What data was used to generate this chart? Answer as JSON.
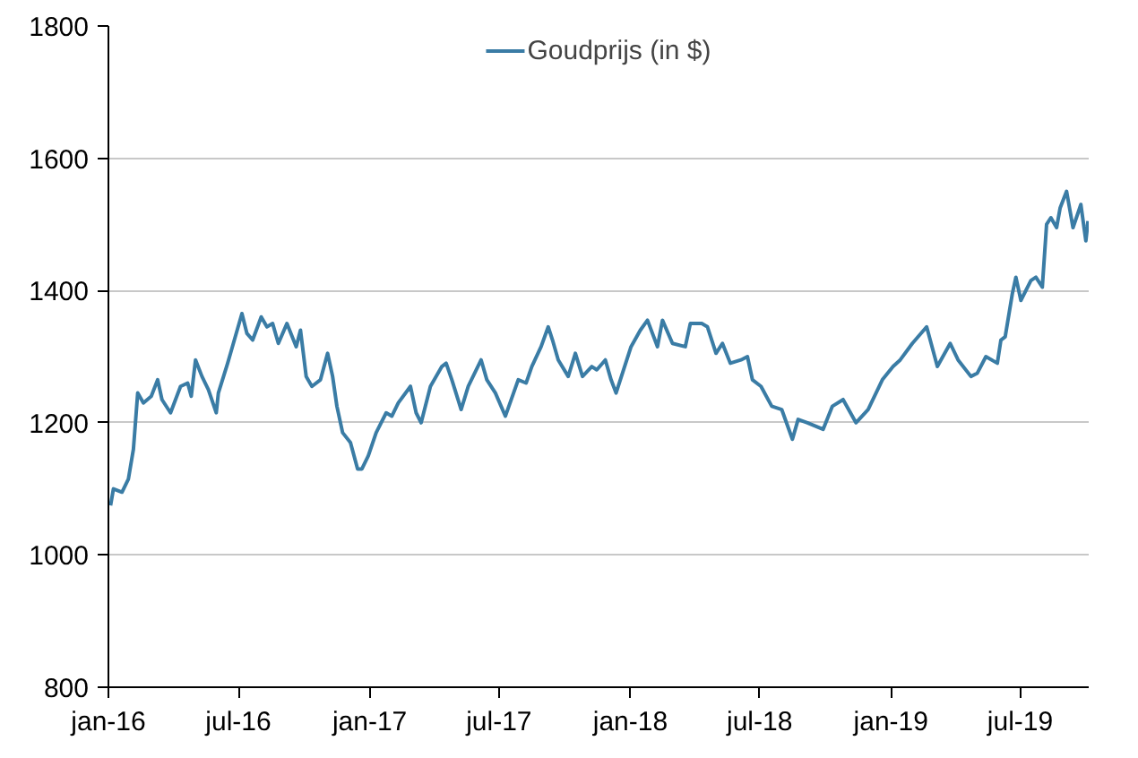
{
  "chart_data": {
    "type": "line",
    "legend": "top",
    "grid": "y",
    "xlim": [
      "2016-01-01",
      "2019-10-05"
    ],
    "xticks": [
      {
        "value": "2016-01-01",
        "label": "jan-16"
      },
      {
        "value": "2016-07-01",
        "label": "jul-16"
      },
      {
        "value": "2017-01-01",
        "label": "jan-17"
      },
      {
        "value": "2017-07-01",
        "label": "jul-17"
      },
      {
        "value": "2018-01-01",
        "label": "jan-18"
      },
      {
        "value": "2018-07-01",
        "label": "jul-18"
      },
      {
        "value": "2019-01-01",
        "label": "jan-19"
      },
      {
        "value": "2019-07-01",
        "label": "jul-19"
      }
    ],
    "ylim": [
      800,
      1800
    ],
    "yticks": [
      800,
      1000,
      1200,
      1400,
      1600,
      1800
    ],
    "x": [
      "2016-01-04",
      "2016-01-08",
      "2016-01-20",
      "2016-01-29",
      "2016-02-05",
      "2016-02-11",
      "2016-02-19",
      "2016-03-01",
      "2016-03-10",
      "2016-03-16",
      "2016-03-28",
      "2016-04-11",
      "2016-04-21",
      "2016-04-26",
      "2016-05-02",
      "2016-05-11",
      "2016-05-20",
      "2016-05-31",
      "2016-06-03",
      "2016-06-16",
      "2016-06-24",
      "2016-07-06",
      "2016-07-13",
      "2016-07-21",
      "2016-08-02",
      "2016-08-10",
      "2016-08-18",
      "2016-08-26",
      "2016-09-07",
      "2016-09-20",
      "2016-09-26",
      "2016-10-04",
      "2016-10-12",
      "2016-10-24",
      "2016-11-03",
      "2016-11-10",
      "2016-11-16",
      "2016-11-24",
      "2016-12-05",
      "2016-12-15",
      "2016-12-21",
      "2016-12-30",
      "2017-01-10",
      "2017-01-24",
      "2017-02-01",
      "2017-02-10",
      "2017-02-27",
      "2017-03-07",
      "2017-03-14",
      "2017-03-27",
      "2017-04-12",
      "2017-04-18",
      "2017-04-26",
      "2017-05-09",
      "2017-05-19",
      "2017-06-06",
      "2017-06-14",
      "2017-06-26",
      "2017-07-10",
      "2017-07-28",
      "2017-08-08",
      "2017-08-16",
      "2017-08-29",
      "2017-09-08",
      "2017-09-14",
      "2017-09-22",
      "2017-10-06",
      "2017-10-16",
      "2017-10-26",
      "2017-11-08",
      "2017-11-15",
      "2017-11-27",
      "2017-12-05",
      "2017-12-12",
      "2018-01-02",
      "2018-01-15",
      "2018-01-25",
      "2018-02-08",
      "2018-02-15",
      "2018-03-01",
      "2018-03-19",
      "2018-03-26",
      "2018-04-11",
      "2018-04-19",
      "2018-05-01",
      "2018-05-10",
      "2018-05-21",
      "2018-06-05",
      "2018-06-14",
      "2018-06-21",
      "2018-07-03",
      "2018-07-18",
      "2018-08-01",
      "2018-08-16",
      "2018-08-24",
      "2018-09-06",
      "2018-09-28",
      "2018-10-11",
      "2018-10-26",
      "2018-11-13",
      "2018-11-30",
      "2018-12-20",
      "2019-01-04",
      "2019-01-14",
      "2019-01-31",
      "2019-02-20",
      "2019-03-07",
      "2019-03-25",
      "2019-04-05",
      "2019-04-23",
      "2019-05-02",
      "2019-05-14",
      "2019-05-30",
      "2019-06-04",
      "2019-06-10",
      "2019-06-20",
      "2019-06-25",
      "2019-07-02",
      "2019-07-16",
      "2019-07-23",
      "2019-08-01",
      "2019-08-07",
      "2019-08-13",
      "2019-08-21",
      "2019-08-26",
      "2019-09-04",
      "2019-09-13",
      "2019-09-24",
      "2019-10-01",
      "2019-10-04"
    ],
    "series": [
      {
        "name": "Goudprijs (in $)",
        "color": "#3a7ca5",
        "values": [
          1075,
          1100,
          1095,
          1115,
          1160,
          1245,
          1230,
          1240,
          1265,
          1235,
          1215,
          1255,
          1260,
          1240,
          1295,
          1270,
          1250,
          1215,
          1245,
          1290,
          1320,
          1365,
          1335,
          1325,
          1360,
          1345,
          1350,
          1320,
          1350,
          1315,
          1340,
          1270,
          1255,
          1265,
          1305,
          1270,
          1225,
          1185,
          1170,
          1130,
          1130,
          1150,
          1185,
          1215,
          1210,
          1230,
          1255,
          1215,
          1200,
          1255,
          1285,
          1290,
          1265,
          1220,
          1255,
          1295,
          1265,
          1245,
          1210,
          1265,
          1260,
          1285,
          1315,
          1345,
          1325,
          1295,
          1270,
          1305,
          1270,
          1285,
          1280,
          1295,
          1265,
          1245,
          1315,
          1340,
          1355,
          1315,
          1355,
          1320,
          1315,
          1350,
          1350,
          1345,
          1305,
          1320,
          1290,
          1295,
          1300,
          1265,
          1255,
          1225,
          1220,
          1175,
          1205,
          1200,
          1190,
          1225,
          1235,
          1200,
          1220,
          1265,
          1285,
          1295,
          1320,
          1345,
          1285,
          1320,
          1295,
          1270,
          1275,
          1300,
          1290,
          1325,
          1330,
          1395,
          1420,
          1385,
          1415,
          1420,
          1405,
          1500,
          1510,
          1495,
          1525,
          1550,
          1495,
          1530,
          1475,
          1505
        ]
      }
    ]
  }
}
